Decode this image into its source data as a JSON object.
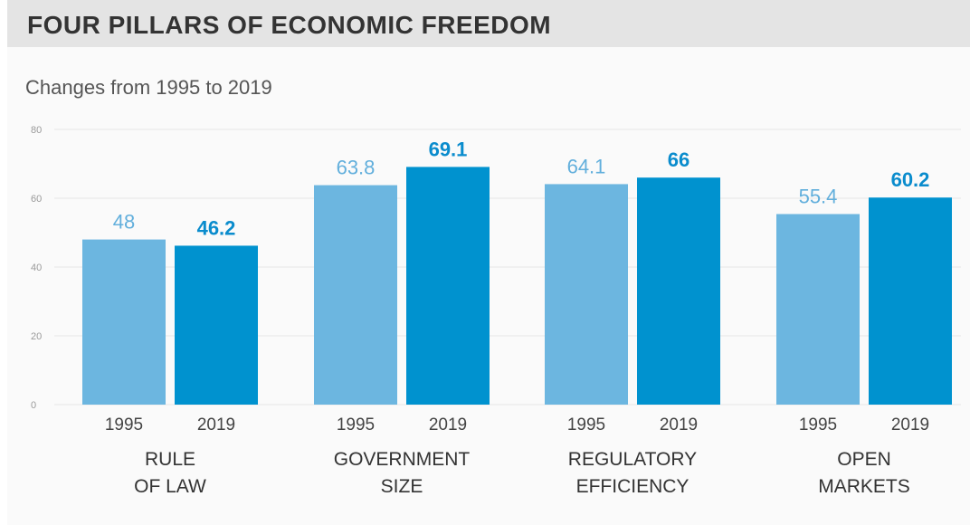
{
  "chart_data": {
    "type": "bar",
    "title": "FOUR PILLARS OF ECONOMIC FREEDOM",
    "subtitle": "Changes from 1995 to 2019",
    "xlabel": "",
    "ylabel": "",
    "ylim": [
      0,
      80
    ],
    "yticks": [
      0,
      20,
      40,
      60,
      80
    ],
    "grid": true,
    "legend": "none",
    "categories": [
      {
        "label_lines": [
          "RULE",
          "OF LAW"
        ]
      },
      {
        "label_lines": [
          "GOVERNMENT",
          "SIZE"
        ]
      },
      {
        "label_lines": [
          "REGULATORY",
          "EFFICIENCY"
        ]
      },
      {
        "label_lines": [
          "OPEN",
          "MARKETS"
        ]
      }
    ],
    "series": [
      {
        "year": "1995",
        "color": "#6cb6e0",
        "value_color": "#62afdc",
        "values": [
          48,
          63.8,
          64.1,
          55.4
        ],
        "labels": [
          "48",
          "63.8",
          "64.1",
          "55.4"
        ]
      },
      {
        "year": "2019",
        "color": "#0092cf",
        "value_color": "#0a8ccd",
        "values": [
          46.2,
          69.1,
          66,
          60.2
        ],
        "labels": [
          "46.2",
          "69.1",
          "66",
          "60.2"
        ]
      }
    ]
  }
}
